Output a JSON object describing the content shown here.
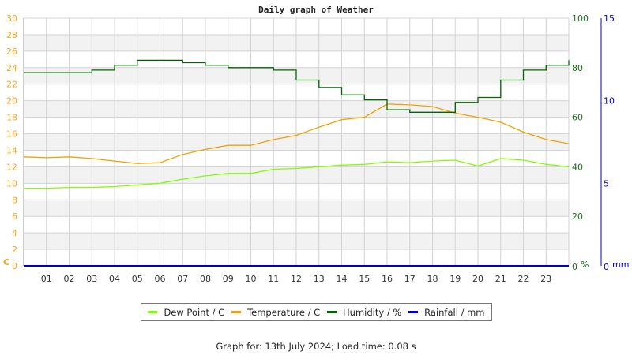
{
  "page": {
    "title": "Daily graph of Weather",
    "footer": "Graph for: 13th July 2024; Load time: 0.08 s"
  },
  "colors": {
    "dew_point": "#80ff00",
    "temperature": "#f5a000",
    "humidity": "#006400",
    "rainfall": "#0000cc",
    "temp_axis": "#f5a623",
    "humidity_axis": "#1a6e1a",
    "rain_axis": "#0000cc",
    "grid": "#d3d3d3",
    "band": "#f2f2f2"
  },
  "legend": [
    {
      "label": "Dew Point / C",
      "color": "#80ff00"
    },
    {
      "label": "Temperature / C",
      "color": "#f5a000"
    },
    {
      "label": "Humidity / %",
      "color": "#006400"
    },
    {
      "label": "Rainfall / mm",
      "color": "#0000cc"
    }
  ],
  "chart_data": {
    "type": "line",
    "title": "Daily graph of Weather",
    "xlabel": "",
    "x": [
      0,
      1,
      2,
      3,
      4,
      5,
      6,
      7,
      8,
      9,
      10,
      11,
      12,
      13,
      14,
      15,
      16,
      17,
      18,
      19,
      20,
      21,
      22,
      23,
      24
    ],
    "x_tick_labels": [
      "01",
      "02",
      "03",
      "04",
      "05",
      "06",
      "07",
      "08",
      "09",
      "10",
      "11",
      "12",
      "13",
      "14",
      "15",
      "16",
      "17",
      "18",
      "19",
      "20",
      "21",
      "22",
      "23"
    ],
    "axes": {
      "left": {
        "label": "C",
        "min": 0,
        "max": 30,
        "ticks": [
          0,
          2,
          4,
          6,
          8,
          10,
          12,
          14,
          16,
          18,
          20,
          22,
          24,
          26,
          28,
          30
        ]
      },
      "right_humidity": {
        "label": "%",
        "min": 0,
        "max": 100,
        "ticks": [
          0,
          20,
          40,
          60,
          80,
          100
        ]
      },
      "right_rain": {
        "label": "mm",
        "min": 0,
        "max": 15,
        "ticks": [
          0,
          5,
          10,
          15
        ]
      }
    },
    "grid": true,
    "legend_position": "bottom",
    "series": [
      {
        "name": "Dew Point / C",
        "axis": "left",
        "values": [
          9.4,
          9.4,
          9.5,
          9.5,
          9.6,
          9.8,
          10.0,
          10.5,
          10.9,
          11.2,
          11.2,
          11.7,
          11.8,
          12.0,
          12.2,
          12.3,
          12.6,
          12.5,
          12.7,
          12.8,
          12.1,
          13.0,
          12.8,
          12.3,
          12.0
        ]
      },
      {
        "name": "Temperature / C",
        "axis": "left",
        "values": [
          13.2,
          13.1,
          13.2,
          13.0,
          12.7,
          12.4,
          12.5,
          13.5,
          14.1,
          14.6,
          14.6,
          15.3,
          15.8,
          16.8,
          17.7,
          18.0,
          19.6,
          19.5,
          19.3,
          18.5,
          18.0,
          17.4,
          16.2,
          15.3,
          14.8
        ]
      },
      {
        "name": "Humidity / %",
        "axis": "right_humidity",
        "values": [
          78,
          78,
          78,
          79,
          81,
          83,
          83,
          82,
          81,
          80,
          80,
          79,
          75,
          72,
          69,
          67,
          63,
          62,
          62,
          66,
          68,
          75,
          79,
          81,
          83
        ]
      },
      {
        "name": "Rainfall / mm",
        "axis": "right_rain",
        "values": [
          0,
          0,
          0,
          0,
          0,
          0,
          0,
          0,
          0,
          0,
          0,
          0,
          0,
          0,
          0,
          0,
          0,
          0,
          0,
          0,
          0,
          0,
          0,
          0,
          0
        ]
      }
    ]
  }
}
